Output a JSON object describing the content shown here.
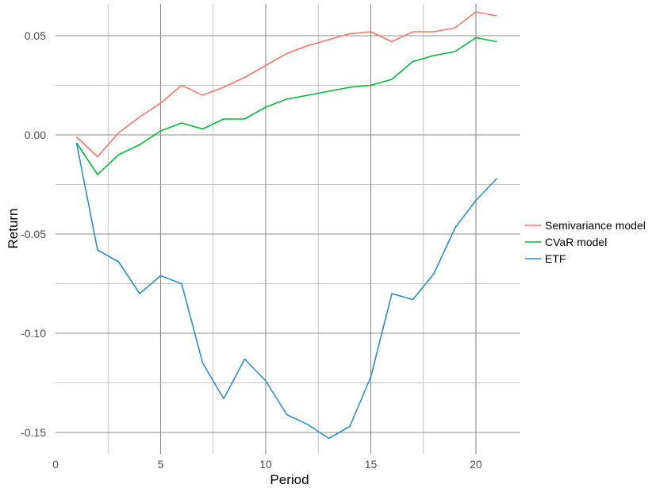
{
  "chart_data": {
    "type": "line",
    "xlabel": "Period",
    "ylabel": "Return",
    "xlim": [
      0,
      22
    ],
    "ylim": [
      -0.16,
      0.065
    ],
    "x_ticks": [
      0,
      5,
      10,
      15,
      20
    ],
    "x_tick_labels": [
      "0",
      "5",
      "10",
      "15",
      "20"
    ],
    "y_ticks": [
      0.05,
      0.0,
      -0.05,
      -0.1,
      -0.15
    ],
    "y_tick_labels": [
      "0.05",
      "0.00",
      "-0.05",
      "-0.10",
      "-0.15"
    ],
    "x_minor": [
      2.5,
      7.5,
      12.5,
      17.5
    ],
    "y_minor": [
      0.025,
      -0.025,
      -0.075,
      -0.125
    ],
    "grid": true,
    "legend_position": "right",
    "x": [
      1,
      2,
      3,
      4,
      5,
      6,
      7,
      8,
      9,
      10,
      11,
      12,
      13,
      14,
      15,
      16,
      17,
      18,
      19,
      20,
      21
    ],
    "series": [
      {
        "name": "Semivariance model",
        "color": "#F8766D",
        "values": [
          -0.001,
          -0.011,
          0.001,
          0.009,
          0.016,
          0.025,
          0.02,
          0.024,
          0.029,
          0.035,
          0.041,
          0.045,
          0.048,
          0.051,
          0.052,
          0.047,
          0.052,
          0.052,
          0.054,
          0.062,
          0.06
        ]
      },
      {
        "name": "CVaR model",
        "color": "#00BA38",
        "values": [
          -0.004,
          -0.02,
          -0.01,
          -0.005,
          0.002,
          0.006,
          0.003,
          0.008,
          0.008,
          0.014,
          0.018,
          0.02,
          0.022,
          0.024,
          0.025,
          0.028,
          0.037,
          0.04,
          0.042,
          0.049,
          0.047
        ]
      },
      {
        "name": "ETF",
        "color": "#2A8FD0",
        "values": [
          -0.004,
          -0.058,
          -0.064,
          -0.08,
          -0.071,
          -0.075,
          -0.115,
          -0.133,
          -0.113,
          -0.124,
          -0.141,
          -0.146,
          -0.153,
          -0.147,
          -0.122,
          -0.08,
          -0.083,
          -0.07,
          -0.047,
          -0.033,
          -0.022
        ]
      }
    ]
  }
}
